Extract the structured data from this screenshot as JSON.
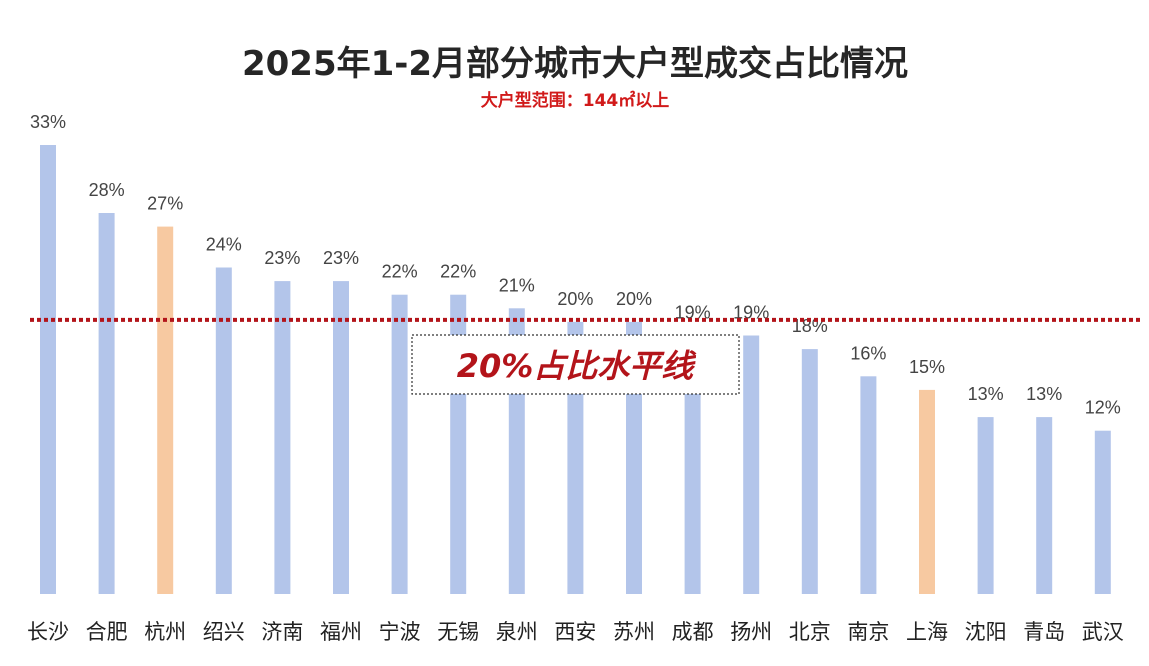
{
  "chart_data": {
    "type": "bar",
    "title": "2025年1-2月部分城市大户型成交占比情况",
    "subtitle": "大户型范围：144㎡以上",
    "categories": [
      "长沙",
      "合肥",
      "杭州",
      "绍兴",
      "济南",
      "福州",
      "宁波",
      "无锡",
      "泉州",
      "西安",
      "苏州",
      "成都",
      "扬州",
      "北京",
      "南京",
      "上海",
      "沈阳",
      "青岛",
      "武汉"
    ],
    "values": [
      33,
      28,
      27,
      24,
      23,
      23,
      22,
      22,
      21,
      20,
      20,
      19,
      19,
      18,
      16,
      15,
      13,
      13,
      12
    ],
    "value_labels": [
      "33%",
      "28%",
      "27%",
      "24%",
      "23%",
      "23%",
      "22%",
      "22%",
      "21%",
      "20%",
      "20%",
      "19%",
      "19%",
      "18%",
      "16%",
      "15%",
      "13%",
      "13%",
      "12%"
    ],
    "highlighted_categories": [
      "杭州",
      "上海"
    ],
    "unit": "%",
    "ylim": [
      0,
      33
    ],
    "grid": false,
    "legend": "none",
    "reference_line": {
      "value": 20,
      "label": "20%占比水平线",
      "style": "dotted"
    },
    "colors": {
      "bar": "#b3c5ea",
      "highlight": "#f7c9a1",
      "reference_line": "#b3141a",
      "title": "#262626",
      "subtitle": "#d11a1a"
    }
  }
}
